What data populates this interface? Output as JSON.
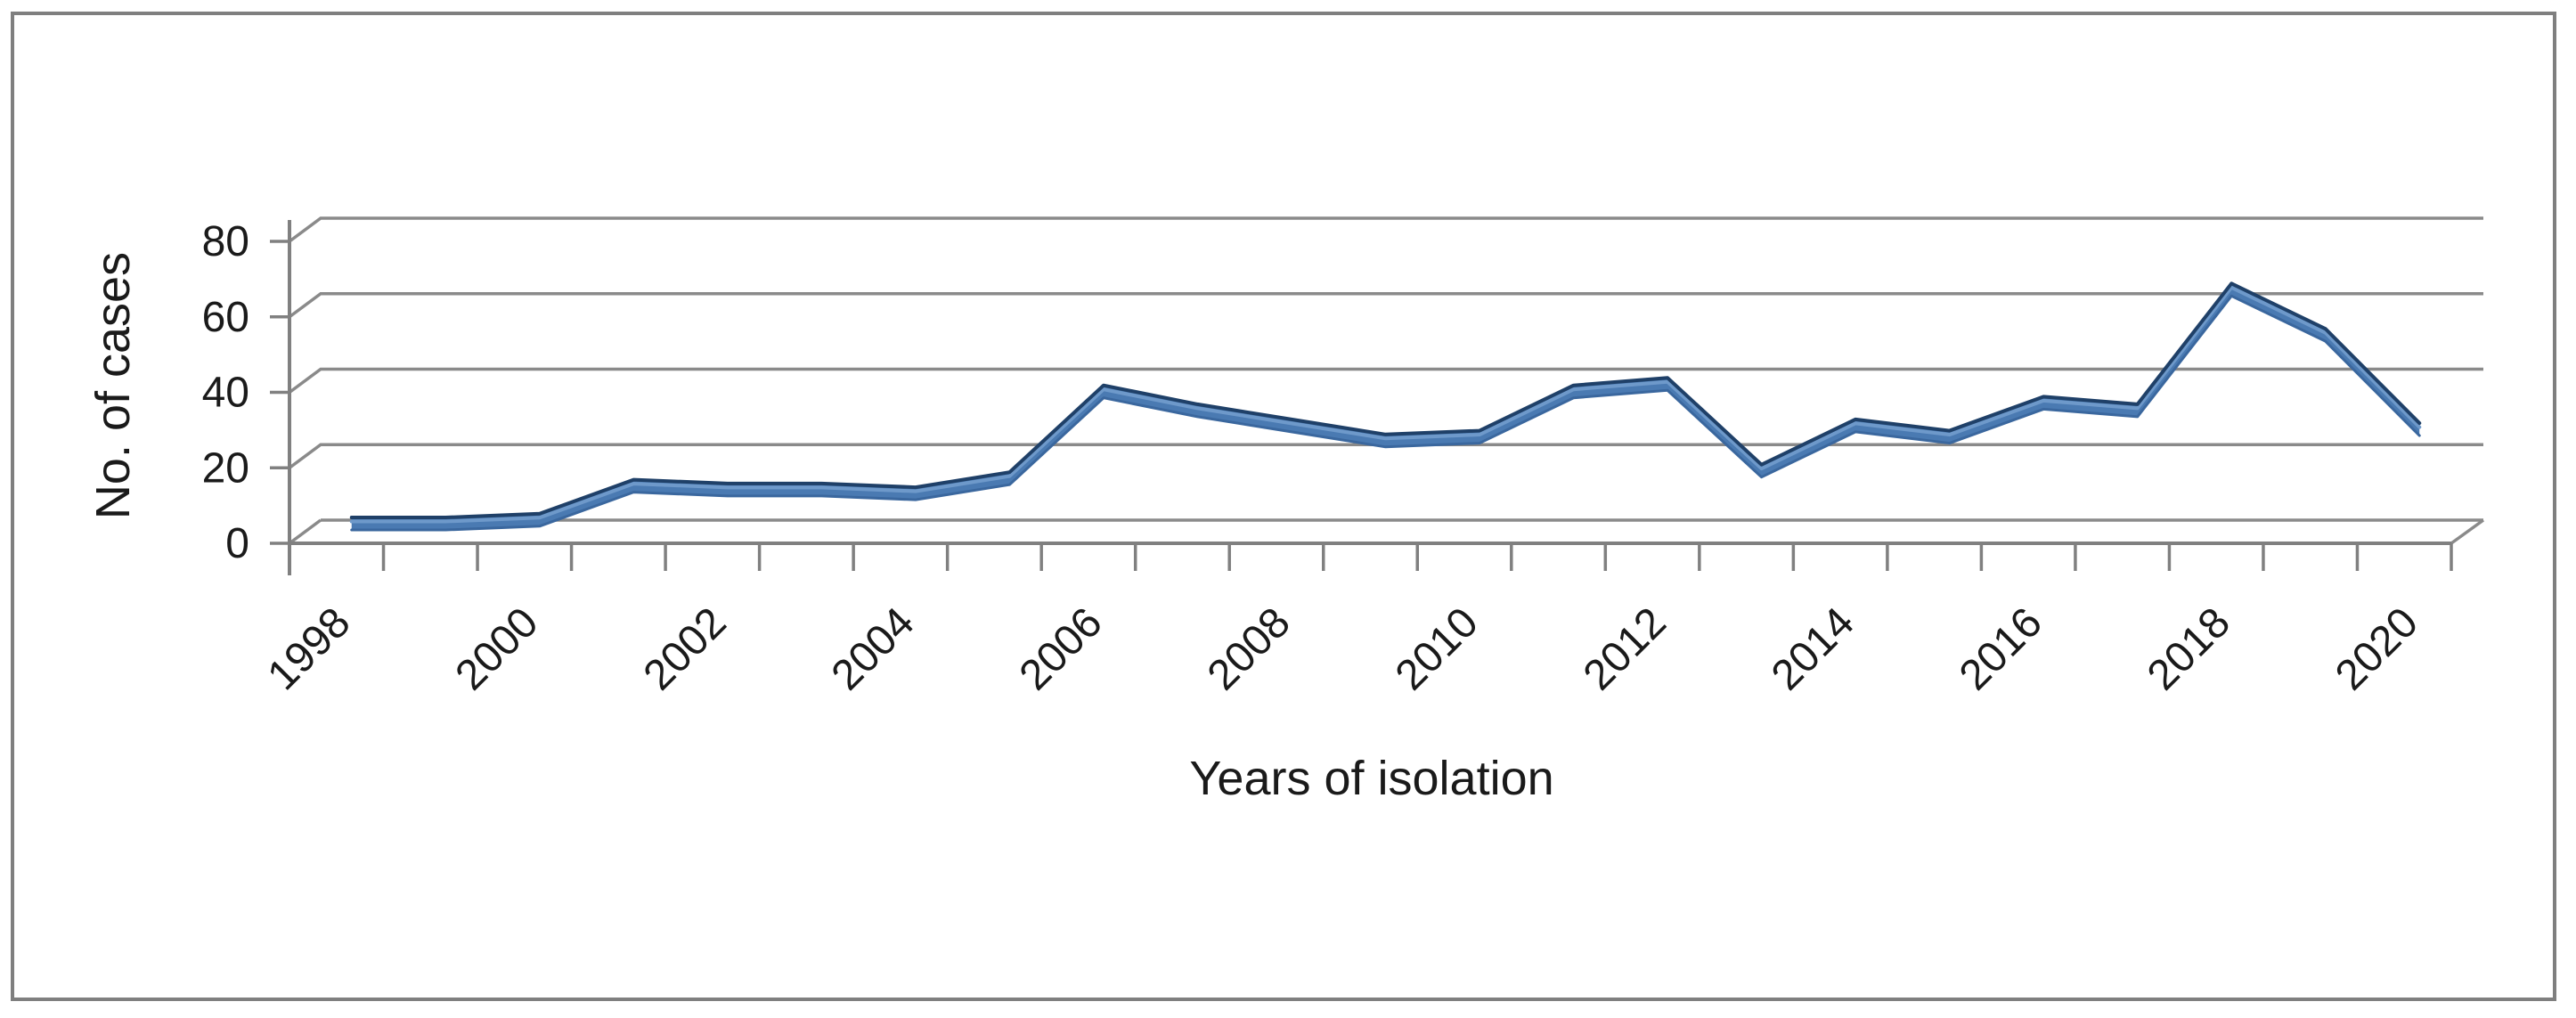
{
  "figure": {
    "background_color": "#ffffff",
    "border_color": "#7f7f7f"
  },
  "chart_data": {
    "type": "line",
    "style": "3d-ribbon-line",
    "title": "",
    "xlabel": "Years of isolation",
    "ylabel": "No. of cases",
    "categories": [
      1998,
      1999,
      2000,
      2001,
      2002,
      2003,
      2004,
      2005,
      2006,
      2007,
      2008,
      2009,
      2010,
      2011,
      2012,
      2013,
      2014,
      2015,
      2016,
      2017,
      2018,
      2019,
      2020
    ],
    "values": [
      2,
      2,
      3,
      12,
      11,
      11,
      10,
      14,
      37,
      32,
      28,
      24,
      25,
      37,
      39,
      16,
      28,
      25,
      34,
      32,
      64,
      52,
      27
    ],
    "ylim": [
      0,
      80
    ],
    "yticks": [
      0,
      20,
      40,
      60,
      80
    ],
    "xtick_labels": [
      "1998",
      "2000",
      "2002",
      "2004",
      "2006",
      "2008",
      "2010",
      "2012",
      "2014",
      "2016",
      "2018",
      "2020"
    ],
    "xtick_label_step": 2,
    "xtick_label_rotation_deg": -45,
    "grid": true,
    "legend": "none",
    "colors": {
      "series_fill": "#4a7ab2",
      "series_top_edge": "#1f4068",
      "series_bevel_highlight": "#6e99ca",
      "series_bottom_edge": "#3a679e",
      "gridline": "#8a8a8a",
      "axis_line": "#808080",
      "text": "#1a1a1a"
    }
  }
}
